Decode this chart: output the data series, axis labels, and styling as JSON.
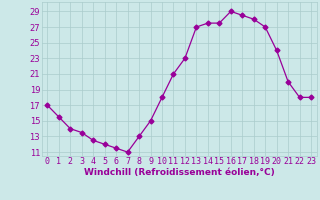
{
  "x": [
    0,
    1,
    2,
    3,
    4,
    5,
    6,
    7,
    8,
    9,
    10,
    11,
    12,
    13,
    14,
    15,
    16,
    17,
    18,
    19,
    20,
    21,
    22,
    23
  ],
  "y": [
    17,
    15.5,
    14,
    13.5,
    12.5,
    12,
    11.5,
    11,
    13,
    15,
    18,
    21,
    23,
    27,
    27.5,
    27.5,
    29,
    28.5,
    28,
    27,
    24,
    20,
    18,
    18
  ],
  "line_color": "#990099",
  "marker": "D",
  "marker_size": 2.5,
  "bg_color": "#cce8e8",
  "grid_color": "#aacccc",
  "xlabel": "Windchill (Refroidissement éolien,°C)",
  "xlabel_color": "#990099",
  "xlabel_fontsize": 6.5,
  "tick_fontsize": 6.0,
  "yticks": [
    11,
    13,
    15,
    17,
    19,
    21,
    23,
    25,
    27,
    29
  ],
  "xtick_labels": [
    "0",
    "1",
    "2",
    "3",
    "4",
    "5",
    "6",
    "7",
    "8",
    "9",
    "10",
    "11",
    "12",
    "13",
    "14",
    "15",
    "16",
    "17",
    "18",
    "19",
    "20",
    "21",
    "22",
    "23"
  ],
  "ylim": [
    10.5,
    30.2
  ],
  "xlim": [
    -0.5,
    23.5
  ]
}
